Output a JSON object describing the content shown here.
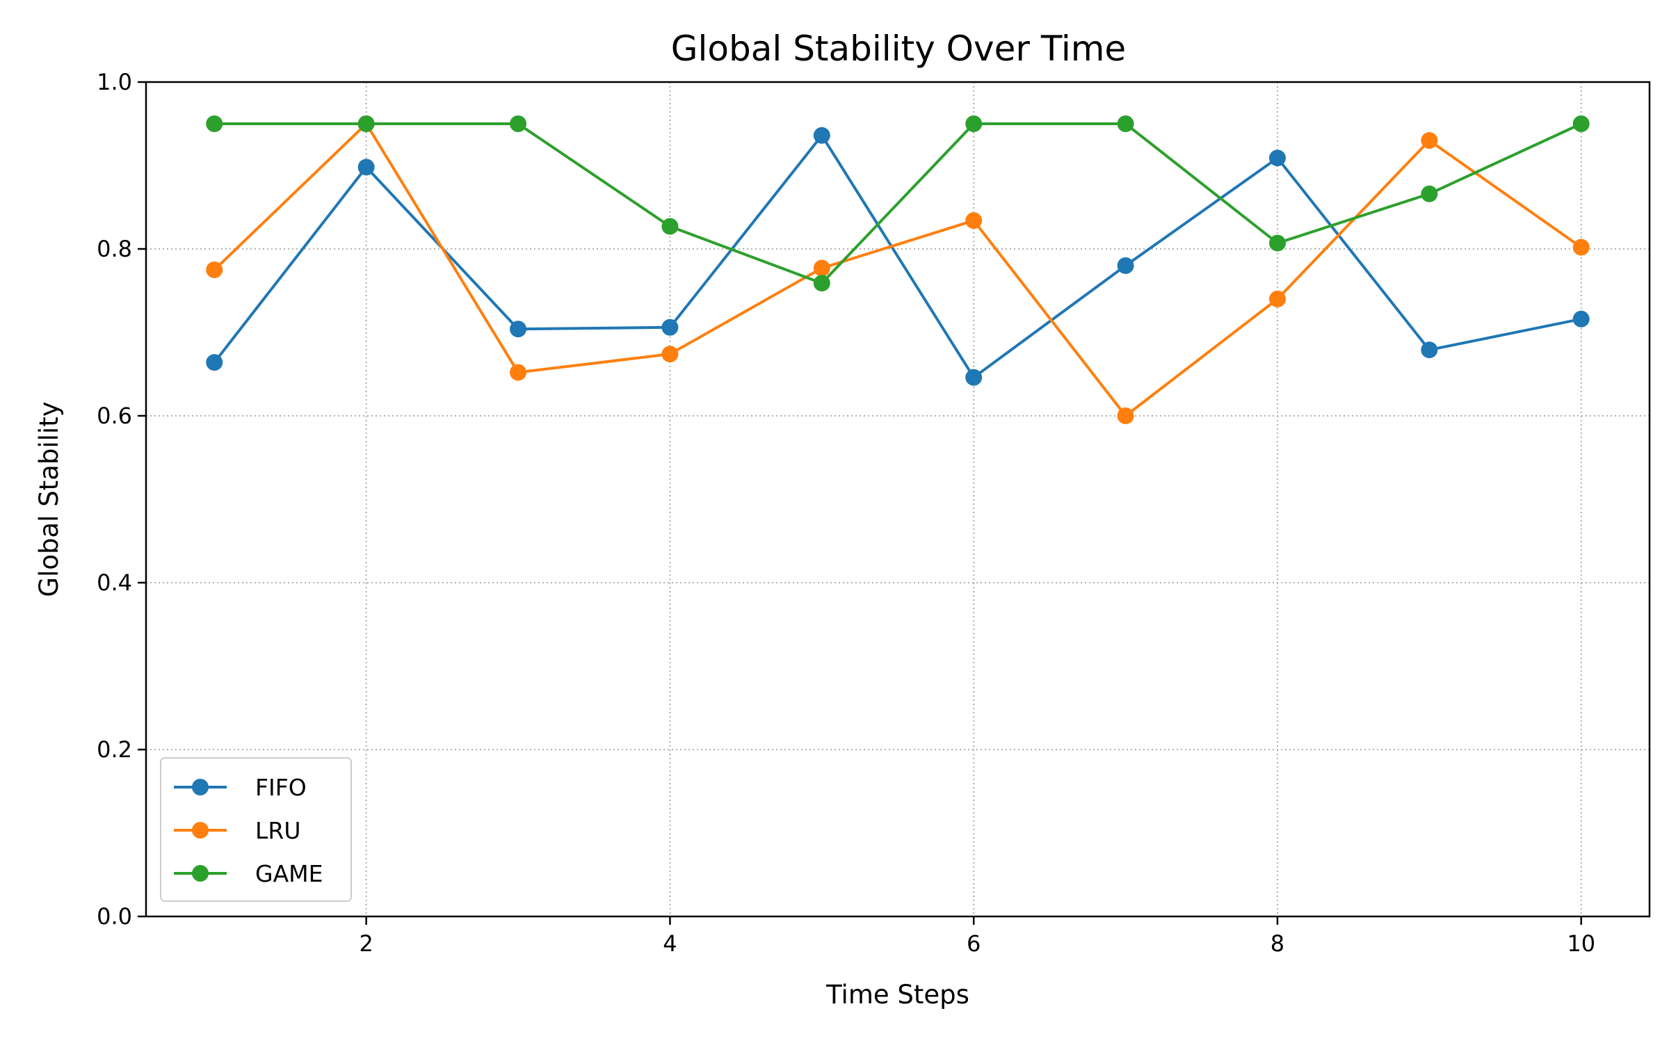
{
  "chart_data": {
    "type": "line",
    "title": "Global Stability Over Time",
    "xlabel": "Time Steps",
    "ylabel": "Global Stability",
    "x": [
      1,
      2,
      3,
      4,
      5,
      6,
      7,
      8,
      9,
      10
    ],
    "xlim": [
      0.55,
      10.45
    ],
    "ylim": [
      0.0,
      1.0
    ],
    "xticks": [
      2,
      4,
      6,
      8,
      10
    ],
    "xtick_labels": [
      "2",
      "4",
      "6",
      "8",
      "10"
    ],
    "yticks": [
      0.0,
      0.2,
      0.4,
      0.6,
      0.8,
      1.0
    ],
    "ytick_labels": [
      "0.0",
      "0.2",
      "0.4",
      "0.6",
      "0.8",
      "1.0"
    ],
    "grid": true,
    "legend_position": "lower-left",
    "series": [
      {
        "name": "FIFO",
        "color": "#1f77b4",
        "marker": "circle",
        "values": [
          0.664,
          0.898,
          0.704,
          0.706,
          0.936,
          0.646,
          0.78,
          0.909,
          0.679,
          0.716
        ]
      },
      {
        "name": "LRU",
        "color": "#ff7f0e",
        "marker": "circle",
        "values": [
          0.775,
          0.95,
          0.652,
          0.674,
          0.777,
          0.834,
          0.6,
          0.74,
          0.93,
          0.802
        ]
      },
      {
        "name": "GAME",
        "color": "#2ca02c",
        "marker": "circle",
        "values": [
          0.95,
          0.95,
          0.95,
          0.827,
          0.759,
          0.95,
          0.95,
          0.807,
          0.866,
          0.95
        ]
      }
    ]
  }
}
